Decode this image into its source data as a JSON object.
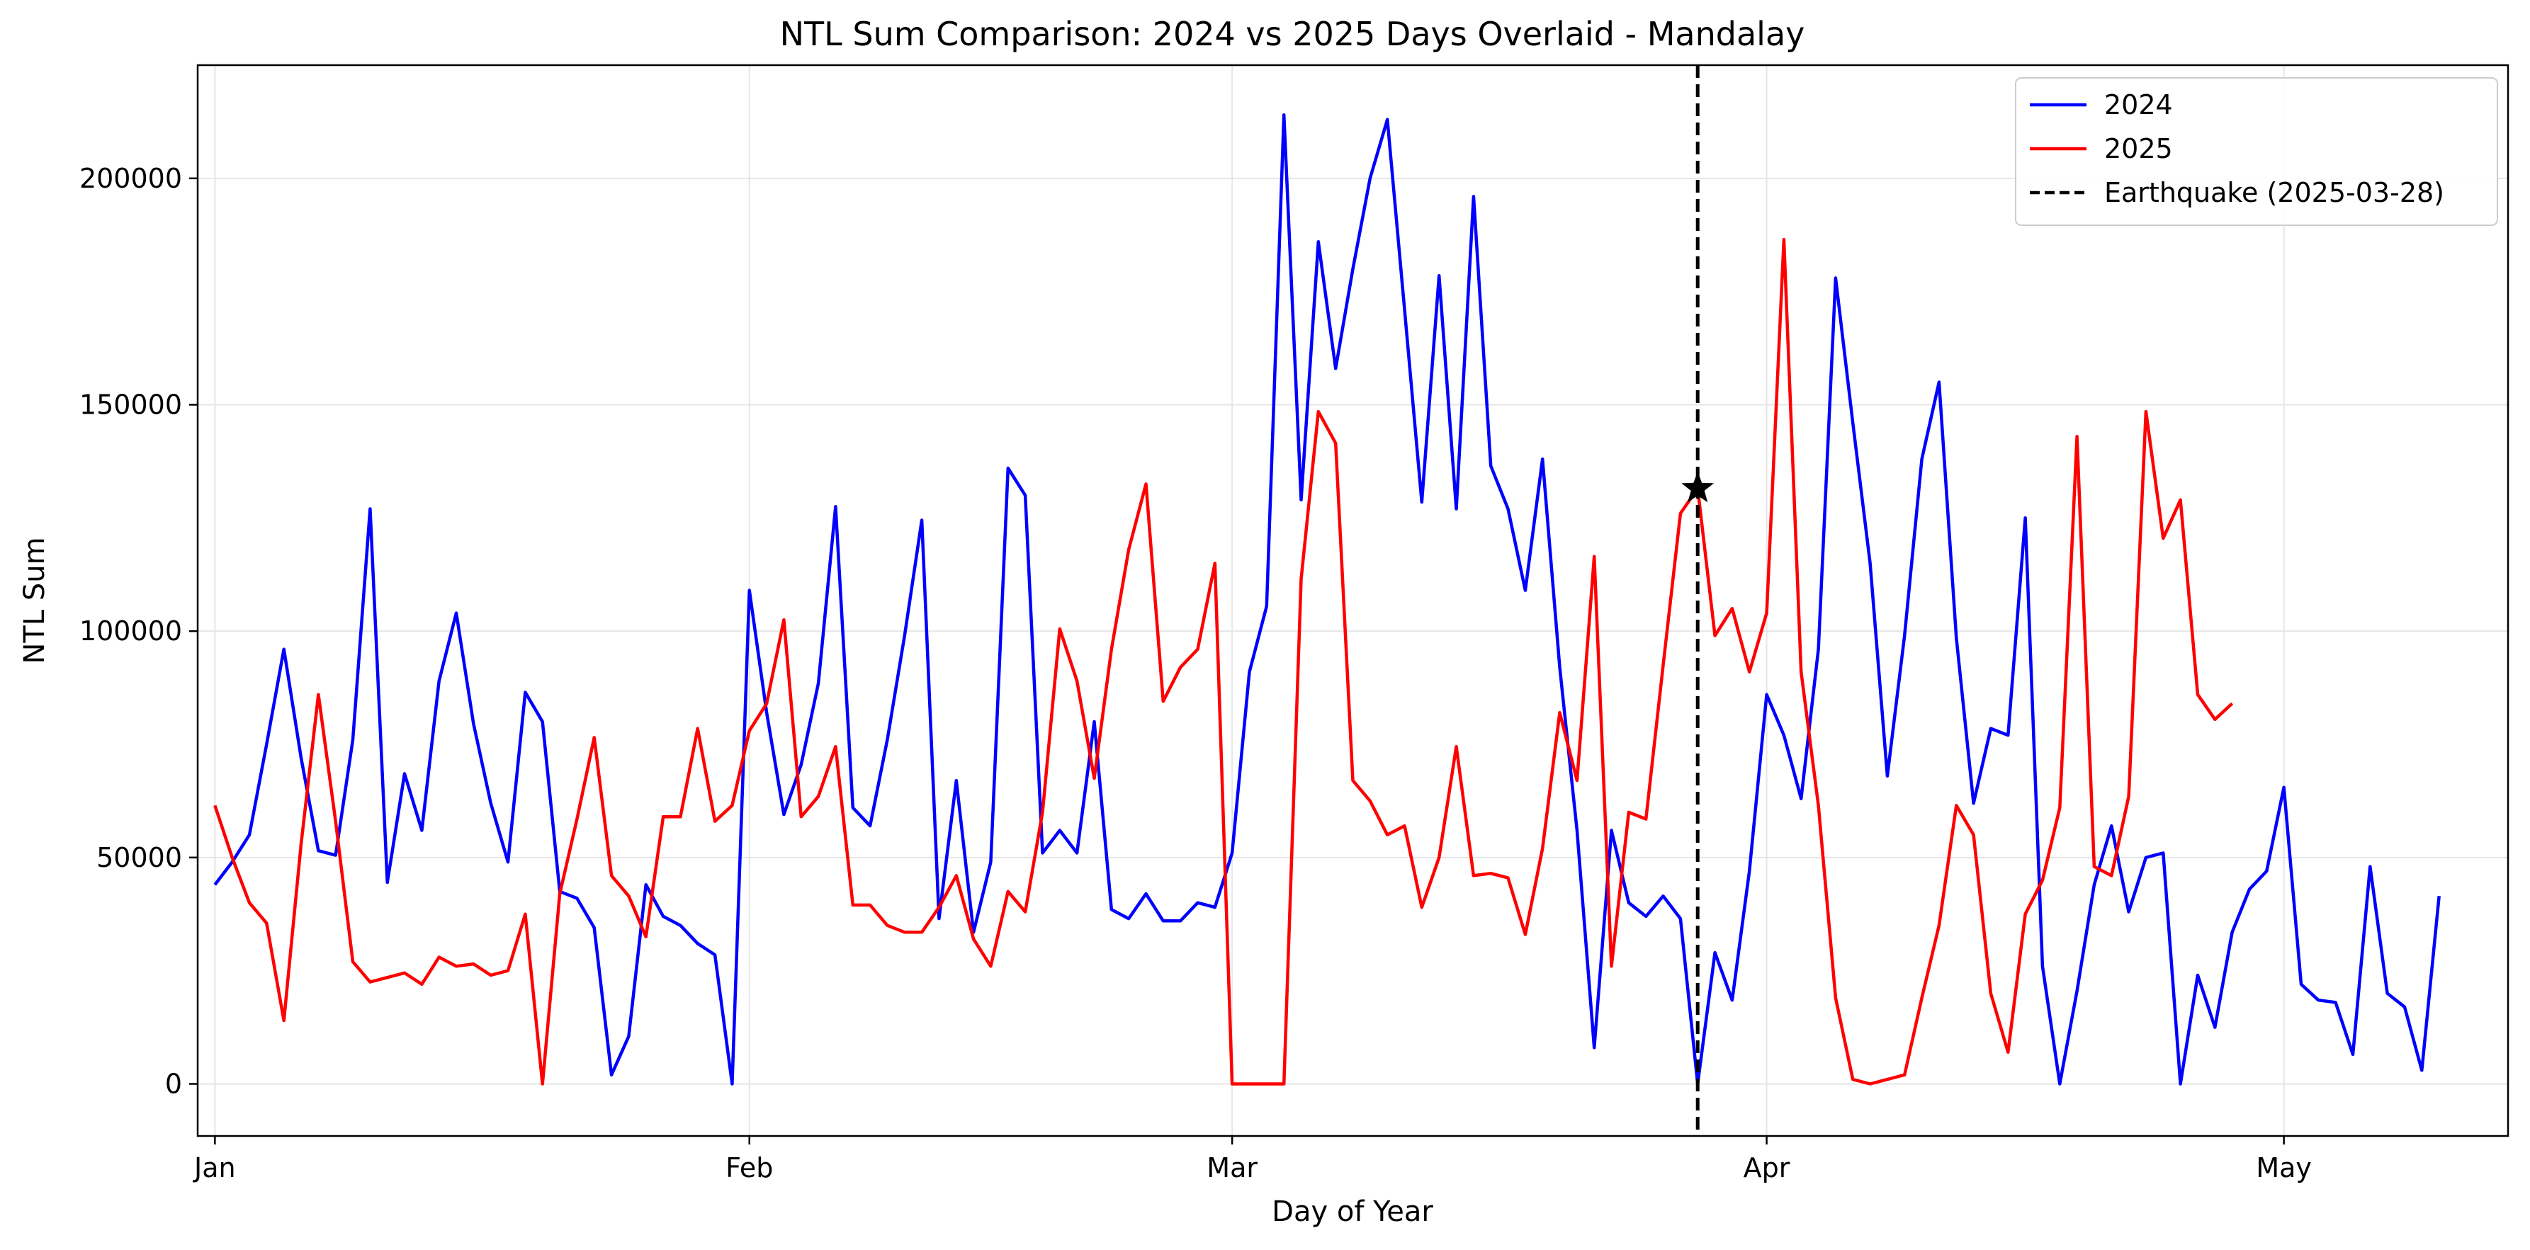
{
  "chart_data": {
    "type": "line",
    "title": "NTL Sum Comparison: 2024 vs 2025 Days Overlaid - Mandalay",
    "xlabel": "Day of Year",
    "ylabel": "NTL Sum",
    "xlim": [
      "2024-12-31",
      "2025-05-14"
    ],
    "ylim": [
      -11500,
      225000
    ],
    "x_ticks": [
      {
        "date": "2025-01-01",
        "label": "Jan"
      },
      {
        "date": "2025-02-01",
        "label": "Feb"
      },
      {
        "date": "2025-03-01",
        "label": "Mar"
      },
      {
        "date": "2025-04-01",
        "label": "Apr"
      },
      {
        "date": "2025-05-01",
        "label": "May"
      }
    ],
    "y_ticks": [
      0,
      50000,
      100000,
      150000,
      200000
    ],
    "grid": true,
    "legend_position": "top-right",
    "series": [
      {
        "name": "2024",
        "color": "#0000ff",
        "start_date": "2025-01-01",
        "values": [
          44000,
          49000,
          55000,
          75000,
          96000,
          72000,
          51500,
          50500,
          76000,
          127000,
          44500,
          68500,
          56000,
          89000,
          104000,
          79500,
          62000,
          49000,
          86500,
          80000,
          42500,
          41000,
          34500,
          2000,
          10500,
          44000,
          37000,
          35000,
          31000,
          28500,
          0,
          109000,
          82000,
          59500,
          70500,
          88500,
          127500,
          61000,
          57000,
          76000,
          99000,
          124500,
          36500,
          67000,
          33500,
          49000,
          136000,
          130000,
          51000,
          56000,
          51000,
          80000,
          38500,
          36500,
          42000,
          36000,
          36000,
          40000,
          39000,
          51000,
          91000,
          105500,
          214000,
          129000,
          186000,
          158000,
          180000,
          200000,
          213000,
          171000,
          128500,
          178500,
          127000,
          196000,
          136500,
          127000,
          109000,
          138000,
          92000,
          56000,
          8000,
          56000,
          40000,
          37000,
          41500,
          36500,
          0,
          29000,
          18500,
          47000,
          86000,
          77000,
          63000,
          96000,
          178000,
          146000,
          115000,
          68000,
          99000,
          138000,
          155000,
          98500,
          62000,
          78500,
          77000,
          125000,
          26000,
          0,
          20500,
          44000,
          57000,
          38000,
          50000,
          51000,
          0,
          24000,
          12500,
          33500,
          43000,
          47000,
          65500,
          22000,
          18500,
          18000,
          6500,
          48000,
          20000,
          17000,
          3000,
          41500
        ]
      },
      {
        "name": "2025",
        "color": "#ff0000",
        "start_date": "2025-01-01",
        "values": [
          61500,
          50000,
          40000,
          35500,
          14000,
          53000,
          86000,
          58000,
          27000,
          22500,
          23500,
          24500,
          22000,
          28000,
          26000,
          26500,
          24000,
          25000,
          37500,
          0,
          42000,
          58500,
          76500,
          46000,
          41500,
          32500,
          59000,
          59000,
          78500,
          58000,
          61500,
          78000,
          84000,
          102500,
          59000,
          63500,
          74500,
          39500,
          39500,
          35000,
          33500,
          33500,
          39000,
          46000,
          32000,
          26000,
          42500,
          38000,
          60000,
          100500,
          89000,
          67500,
          96000,
          118000,
          132500,
          84500,
          92000,
          96000,
          115000,
          0,
          0,
          0,
          0,
          111500,
          148500,
          141500,
          67000,
          62500,
          55000,
          57000,
          39000,
          50000,
          74500,
          46000,
          46500,
          45500,
          33000,
          52000,
          82000,
          67000,
          116500,
          26000,
          60000,
          58500,
          92500,
          126000,
          131500,
          99000,
          105000,
          91000,
          104000,
          186500,
          91000,
          61500,
          19000,
          1000,
          0,
          1000,
          2000,
          19000,
          35000,
          61500,
          55000,
          20000,
          7000,
          37500,
          45000,
          61000,
          143000,
          48000,
          46000,
          63500,
          148500,
          120500,
          129000,
          86000,
          80500,
          84000
        ]
      }
    ],
    "event_marker": {
      "label": "Earthquake (2025-03-28)",
      "date": "2025-03-28",
      "value": 131500,
      "style": "black dashed vertical line with star marker"
    }
  }
}
